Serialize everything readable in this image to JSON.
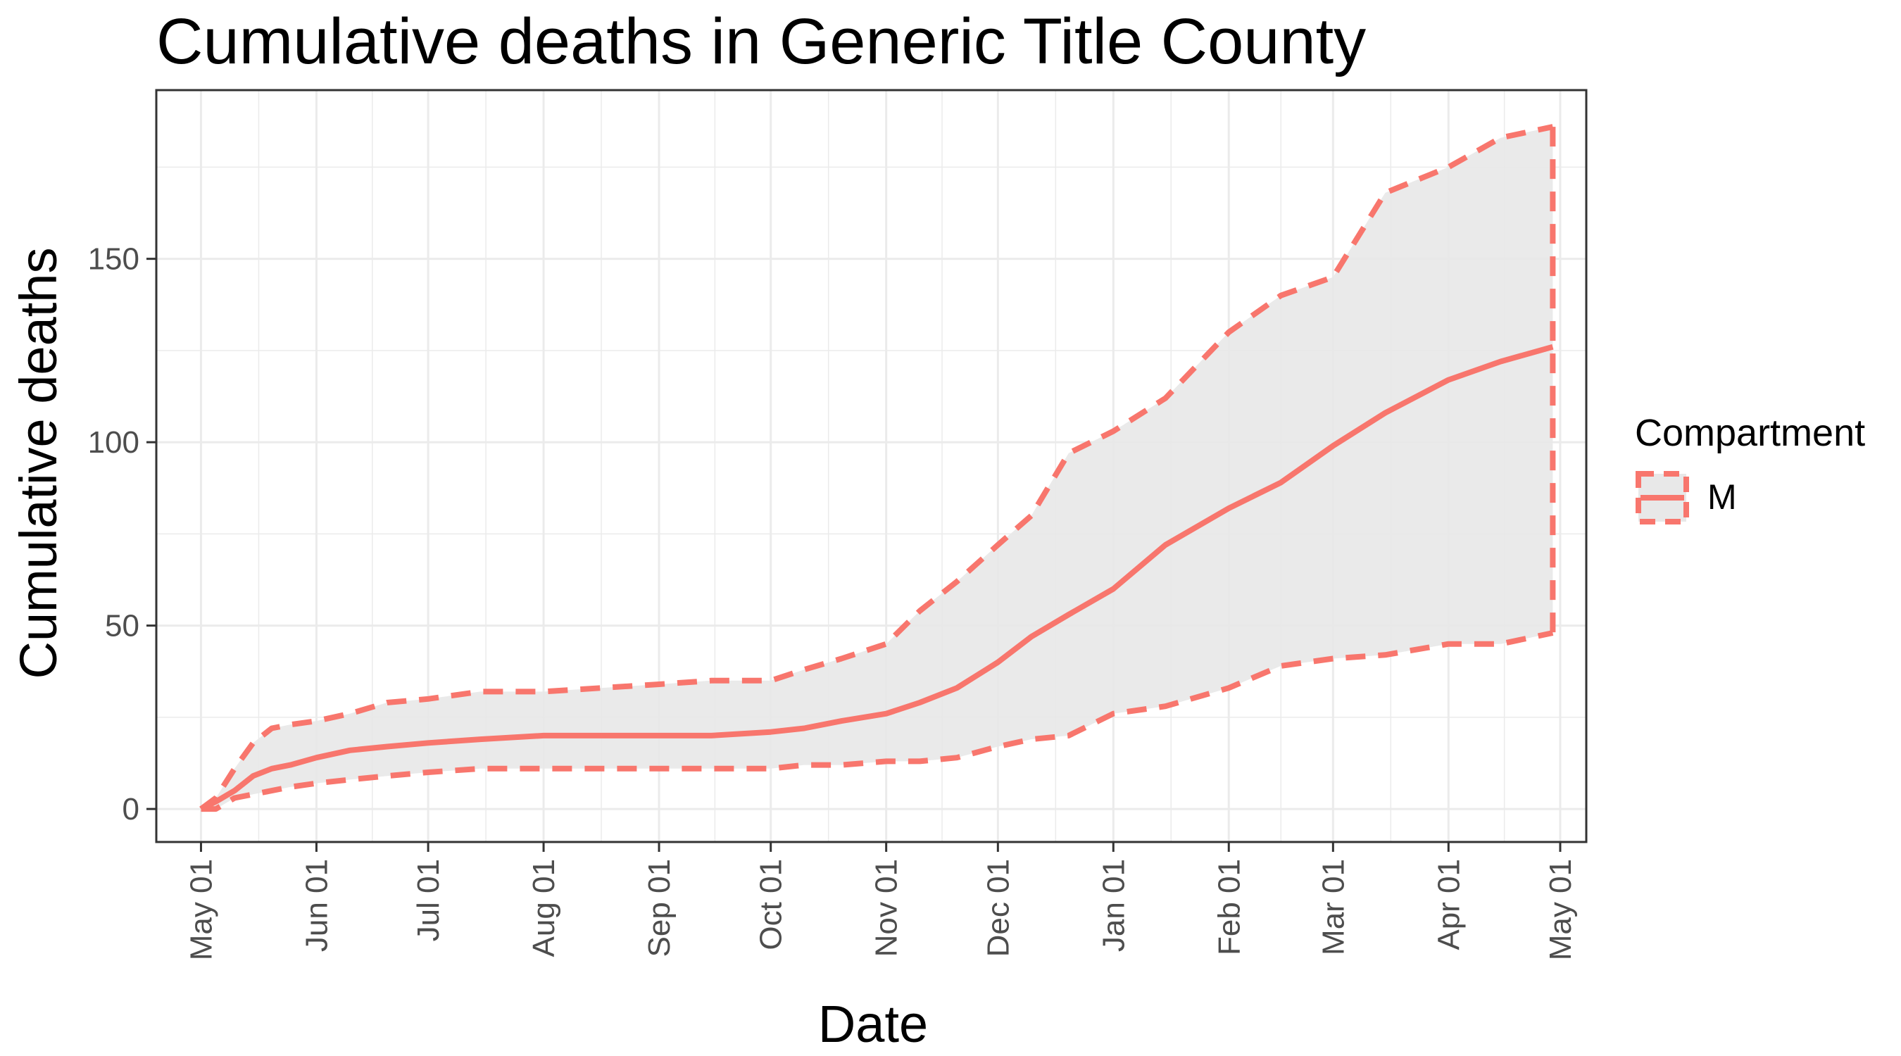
{
  "chart_data": {
    "type": "line",
    "title": "Cumulative deaths in Generic Title County",
    "xlabel": "Date",
    "ylabel": "Cumulative deaths",
    "x_range": [
      "2020-04-19",
      "2021-05-08"
    ],
    "y_range": [
      -9,
      196
    ],
    "x_ticks": [
      {
        "date": "2020-05-01",
        "label": "May 01"
      },
      {
        "date": "2020-06-01",
        "label": "Jun 01"
      },
      {
        "date": "2020-07-01",
        "label": "Jul 01"
      },
      {
        "date": "2020-08-01",
        "label": "Aug 01"
      },
      {
        "date": "2020-09-01",
        "label": "Sep 01"
      },
      {
        "date": "2020-10-01",
        "label": "Oct 01"
      },
      {
        "date": "2020-11-01",
        "label": "Nov 01"
      },
      {
        "date": "2020-12-01",
        "label": "Dec 01"
      },
      {
        "date": "2021-01-01",
        "label": "Jan 01"
      },
      {
        "date": "2021-02-01",
        "label": "Feb 01"
      },
      {
        "date": "2021-03-01",
        "label": "Mar 01"
      },
      {
        "date": "2021-04-01",
        "label": "Apr 01"
      },
      {
        "date": "2021-05-01",
        "label": "May 01"
      }
    ],
    "y_ticks": [
      {
        "value": 0,
        "label": "0"
      },
      {
        "value": 50,
        "label": "50"
      },
      {
        "value": 100,
        "label": "100"
      },
      {
        "value": 150,
        "label": "150"
      }
    ],
    "grid": true,
    "legend": {
      "title": "Compartment",
      "position": "right",
      "entries": [
        "M"
      ]
    },
    "colors": {
      "line": "#f8766d",
      "ribbon": "#e8e8e8",
      "grid": "#ebebeb",
      "panel_border": "#333333"
    },
    "series": [
      {
        "name": "M",
        "x": [
          "2020-05-01",
          "2020-05-05",
          "2020-05-10",
          "2020-05-15",
          "2020-05-20",
          "2020-05-25",
          "2020-06-01",
          "2020-06-10",
          "2020-06-20",
          "2020-07-01",
          "2020-07-15",
          "2020-08-01",
          "2020-09-01",
          "2020-09-15",
          "2020-10-01",
          "2020-10-10",
          "2020-10-20",
          "2020-11-01",
          "2020-11-10",
          "2020-11-20",
          "2020-12-01",
          "2020-12-10",
          "2020-12-20",
          "2021-01-01",
          "2021-01-15",
          "2021-02-01",
          "2021-02-15",
          "2021-03-01",
          "2021-03-15",
          "2021-04-01",
          "2021-04-15",
          "2021-04-29"
        ],
        "median": [
          0,
          2,
          5,
          9,
          11,
          12,
          14,
          16,
          17,
          18,
          19,
          20,
          20,
          20,
          21,
          22,
          24,
          26,
          29,
          33,
          40,
          47,
          53,
          60,
          72,
          82,
          89,
          99,
          108,
          117,
          122,
          126
        ],
        "lower": [
          0,
          0,
          3,
          4,
          5,
          6,
          7,
          8,
          9,
          10,
          11,
          11,
          11,
          11,
          11,
          12,
          12,
          13,
          13,
          14,
          17,
          19,
          20,
          26,
          28,
          33,
          39,
          41,
          42,
          45,
          45,
          48
        ],
        "upper": [
          0,
          3,
          11,
          18,
          22,
          23,
          24,
          26,
          29,
          30,
          32,
          32,
          34,
          35,
          35,
          38,
          41,
          45,
          54,
          62,
          72,
          80,
          97,
          103,
          112,
          130,
          140,
          145,
          168,
          175,
          183,
          186
        ]
      }
    ]
  }
}
